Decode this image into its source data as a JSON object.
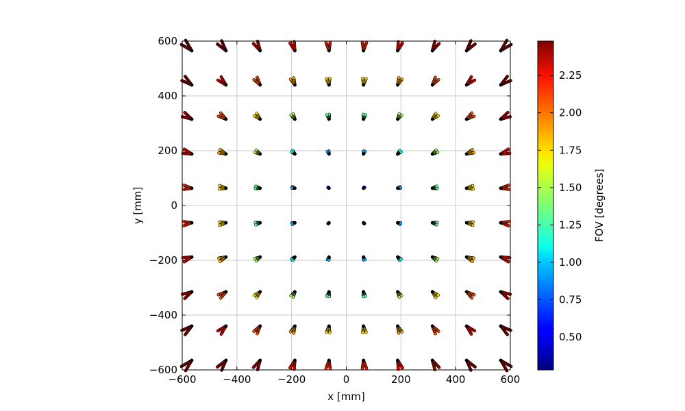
{
  "chart_data": {
    "type": "scatter",
    "title": "",
    "xlabel": "x [mm]",
    "ylabel": "y [mm]",
    "xlim": [
      -600,
      600
    ],
    "ylim": [
      -600,
      600
    ],
    "x_ticks": [
      -600,
      -400,
      -200,
      0,
      200,
      400,
      600
    ],
    "y_ticks": [
      -600,
      -400,
      -200,
      0,
      200,
      400,
      600
    ],
    "x_tick_labels": [
      "−600",
      "−400",
      "−200",
      "0",
      "200",
      "400",
      "600"
    ],
    "y_tick_labels": [
      "−600",
      "−400",
      "−200",
      "0",
      "200",
      "400",
      "600"
    ],
    "grid": true,
    "grid_centers": [
      -565,
      -440,
      -315,
      -188,
      -63,
      63,
      188,
      315,
      440,
      565
    ],
    "colorbar": {
      "label": "FOV [degrees]",
      "min": 0.28,
      "max": 2.48,
      "ticks": [
        0.5,
        0.75,
        1.0,
        1.25,
        1.5,
        1.75,
        2.0,
        2.25
      ],
      "tick_labels": [
        "0.50",
        "0.75",
        "1.00",
        "1.25",
        "1.50",
        "1.75",
        "2.00",
        "2.25"
      ],
      "colormap": "jet"
    },
    "field_pattern": {
      "description_units": "Each grid center carries a short trail of points pointing radially outward; FOV increases with distance from center.",
      "fov_formula": "0.3 + 0.0032 * r_mm, r_mm = distance of grid center from origin",
      "trail_length_mm": "proportional to r_mm"
    }
  }
}
